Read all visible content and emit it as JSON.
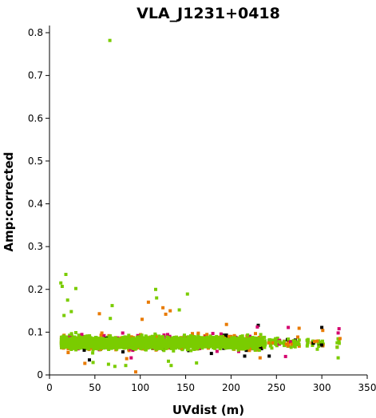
{
  "chart_data": {
    "type": "scatter",
    "title": "VLA_J1231+0418",
    "xlabel": "UVdist (m)",
    "ylabel": "Amp:corrected",
    "xlim": [
      0,
      350
    ],
    "ylim": [
      0,
      0.8
    ],
    "x_ticks": [
      "0",
      "50",
      "100",
      "150",
      "200",
      "250",
      "300",
      "350"
    ],
    "y_ticks": [
      "0",
      "0.1",
      "0.2",
      "0.3",
      "0.4",
      "0.5",
      "0.6",
      "0.7",
      "0.8"
    ],
    "grid": false,
    "legend": "none",
    "marker": "square",
    "colors": [
      "#7acc00",
      "#e87a00",
      "#d4006e",
      "#000000"
    ],
    "bulk_band": {
      "x_range": [
        13,
        320
      ],
      "amp_center": 0.075,
      "amp_range": [
        0.045,
        0.105
      ],
      "dominant_color": "#7acc00"
    },
    "outliers": [
      {
        "x": 66.5,
        "y": 0.782,
        "color": "#7acc00"
      },
      {
        "x": 18,
        "y": 0.235,
        "color": "#7acc00"
      },
      {
        "x": 12.5,
        "y": 0.215,
        "color": "#7acc00"
      },
      {
        "x": 14,
        "y": 0.207,
        "color": "#7acc00"
      },
      {
        "x": 29,
        "y": 0.202,
        "color": "#7acc00"
      },
      {
        "x": 117,
        "y": 0.2,
        "color": "#7acc00"
      },
      {
        "x": 152,
        "y": 0.189,
        "color": "#7acc00"
      },
      {
        "x": 118,
        "y": 0.18,
        "color": "#7acc00"
      },
      {
        "x": 20,
        "y": 0.175,
        "color": "#7acc00"
      },
      {
        "x": 109,
        "y": 0.17,
        "color": "#e87a00"
      },
      {
        "x": 69,
        "y": 0.162,
        "color": "#7acc00"
      },
      {
        "x": 125,
        "y": 0.157,
        "color": "#e87a00"
      },
      {
        "x": 143,
        "y": 0.152,
        "color": "#7acc00"
      },
      {
        "x": 133,
        "y": 0.15,
        "color": "#e87a00"
      },
      {
        "x": 24,
        "y": 0.148,
        "color": "#7acc00"
      },
      {
        "x": 55,
        "y": 0.143,
        "color": "#e87a00"
      },
      {
        "x": 128,
        "y": 0.142,
        "color": "#e87a00"
      },
      {
        "x": 16,
        "y": 0.139,
        "color": "#7acc00"
      },
      {
        "x": 67,
        "y": 0.132,
        "color": "#7acc00"
      },
      {
        "x": 102,
        "y": 0.13,
        "color": "#e87a00"
      },
      {
        "x": 195,
        "y": 0.118,
        "color": "#e87a00"
      },
      {
        "x": 230,
        "y": 0.116,
        "color": "#000000"
      },
      {
        "x": 229,
        "y": 0.112,
        "color": "#d4006e"
      },
      {
        "x": 263,
        "y": 0.111,
        "color": "#d4006e"
      },
      {
        "x": 275,
        "y": 0.109,
        "color": "#e87a00"
      },
      {
        "x": 300,
        "y": 0.111,
        "color": "#000000"
      },
      {
        "x": 301,
        "y": 0.104,
        "color": "#e87a00"
      },
      {
        "x": 319,
        "y": 0.108,
        "color": "#d4006e"
      },
      {
        "x": 318,
        "y": 0.098,
        "color": "#d4006e"
      },
      {
        "x": 292,
        "y": 0.078,
        "color": "#e87a00"
      },
      {
        "x": 320,
        "y": 0.085,
        "color": "#e87a00"
      },
      {
        "x": 300,
        "y": 0.07,
        "color": "#000000"
      },
      {
        "x": 295,
        "y": 0.06,
        "color": "#7acc00"
      },
      {
        "x": 318,
        "y": 0.04,
        "color": "#7acc00"
      },
      {
        "x": 260,
        "y": 0.043,
        "color": "#d4006e"
      },
      {
        "x": 242,
        "y": 0.044,
        "color": "#000000"
      },
      {
        "x": 232,
        "y": 0.04,
        "color": "#e87a00"
      },
      {
        "x": 215,
        "y": 0.044,
        "color": "#000000"
      },
      {
        "x": 90,
        "y": 0.04,
        "color": "#d4006e"
      },
      {
        "x": 85,
        "y": 0.038,
        "color": "#e87a00"
      },
      {
        "x": 95,
        "y": 0.007,
        "color": "#e87a00"
      },
      {
        "x": 84,
        "y": 0.022,
        "color": "#7acc00"
      },
      {
        "x": 72,
        "y": 0.02,
        "color": "#7acc00"
      },
      {
        "x": 65,
        "y": 0.025,
        "color": "#7acc00"
      },
      {
        "x": 134,
        "y": 0.022,
        "color": "#7acc00"
      },
      {
        "x": 131,
        "y": 0.032,
        "color": "#7acc00"
      },
      {
        "x": 162,
        "y": 0.028,
        "color": "#7acc00"
      },
      {
        "x": 48,
        "y": 0.029,
        "color": "#7acc00"
      },
      {
        "x": 39,
        "y": 0.027,
        "color": "#e87a00"
      },
      {
        "x": 44,
        "y": 0.035,
        "color": "#000000"
      }
    ]
  }
}
